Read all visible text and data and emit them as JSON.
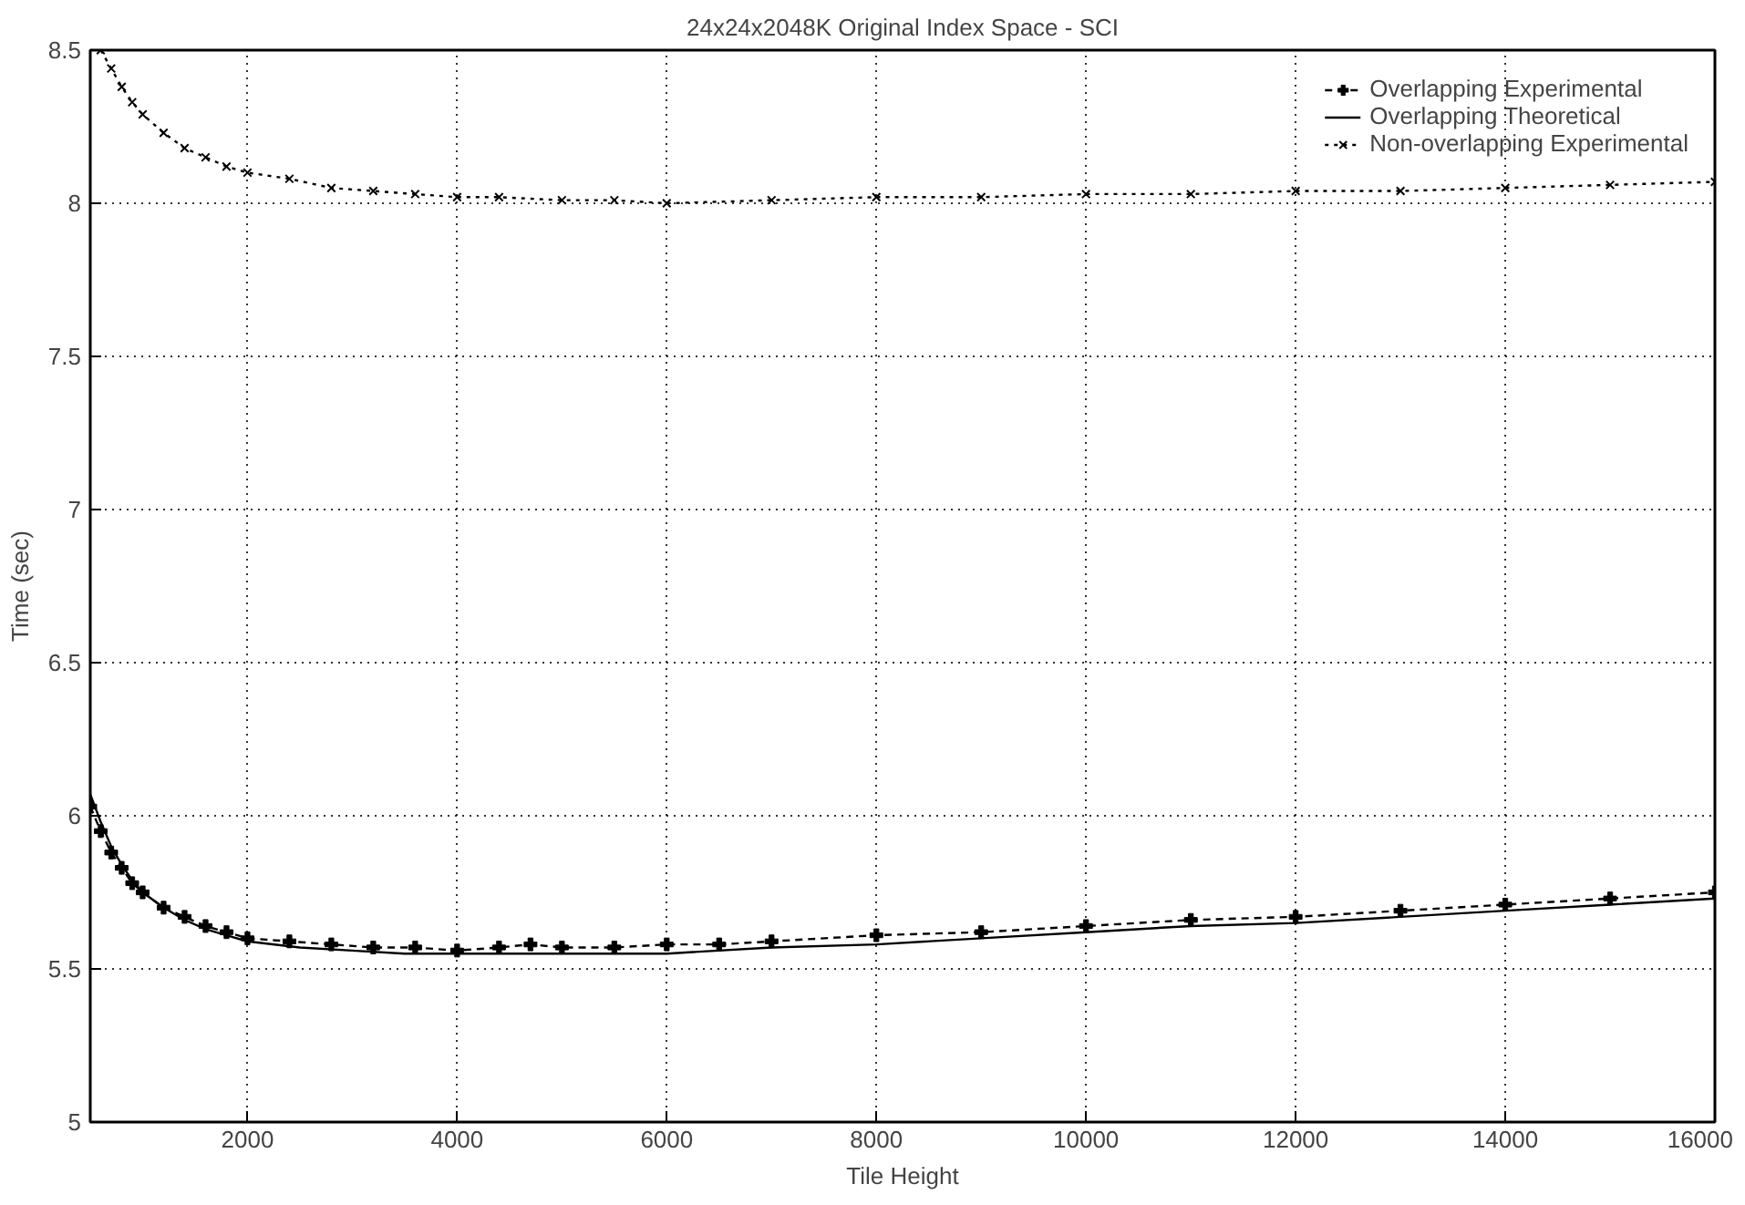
{
  "chart_data": {
    "type": "line",
    "title": "24x24x2048K Original Index Space - SCI",
    "xlabel": "Tile Height",
    "ylabel": "Time (sec)",
    "xlim": [
      500,
      16000
    ],
    "ylim": [
      5,
      8.5
    ],
    "xticks": [
      2000,
      4000,
      6000,
      8000,
      10000,
      12000,
      14000,
      16000
    ],
    "yticks": [
      5,
      5.5,
      6,
      6.5,
      7,
      7.5,
      8,
      8.5
    ],
    "grid": true,
    "legend": "top right",
    "series": [
      {
        "name": "Overlapping Experimental",
        "color": "#000000",
        "line_style": "dashed",
        "marker": "cross",
        "x": [
          500,
          600,
          700,
          800,
          900,
          1000,
          1200,
          1400,
          1600,
          1800,
          2000,
          2400,
          2800,
          3200,
          3600,
          4000,
          4400,
          4700,
          5000,
          5500,
          6000,
          6500,
          7000,
          8000,
          9000,
          10000,
          11000,
          12000,
          13000,
          14000,
          15000,
          16000
        ],
        "values": [
          6.03,
          5.95,
          5.88,
          5.83,
          5.78,
          5.75,
          5.7,
          5.67,
          5.64,
          5.62,
          5.6,
          5.59,
          5.58,
          5.57,
          5.57,
          5.56,
          5.57,
          5.58,
          5.57,
          5.57,
          5.58,
          5.58,
          5.59,
          5.61,
          5.62,
          5.64,
          5.66,
          5.67,
          5.69,
          5.71,
          5.73,
          5.75
        ]
      },
      {
        "name": "Overlapping Theoretical",
        "color": "#000000",
        "line_style": "solid",
        "marker": "none",
        "x": [
          500,
          600,
          700,
          800,
          900,
          1000,
          1200,
          1400,
          1600,
          1800,
          2000,
          2500,
          3000,
          3500,
          4000,
          5000,
          6000,
          7000,
          8000,
          9000,
          10000,
          11000,
          12000,
          13000,
          14000,
          15000,
          16000
        ],
        "values": [
          6.07,
          5.98,
          5.9,
          5.84,
          5.79,
          5.75,
          5.7,
          5.66,
          5.63,
          5.61,
          5.59,
          5.57,
          5.56,
          5.55,
          5.55,
          5.55,
          5.55,
          5.57,
          5.58,
          5.6,
          5.62,
          5.64,
          5.65,
          5.67,
          5.69,
          5.71,
          5.73
        ]
      },
      {
        "name": "Non-overlapping Experimental",
        "color": "#000000",
        "line_style": "dotted",
        "marker": "x",
        "x": [
          600,
          700,
          800,
          900,
          1000,
          1200,
          1400,
          1600,
          1800,
          2000,
          2400,
          2800,
          3200,
          3600,
          4000,
          4400,
          5000,
          5500,
          6000,
          7000,
          8000,
          9000,
          10000,
          11000,
          12000,
          13000,
          14000,
          15000,
          16000
        ],
        "values": [
          8.5,
          8.44,
          8.38,
          8.33,
          8.29,
          8.23,
          8.18,
          8.15,
          8.12,
          8.1,
          8.08,
          8.05,
          8.04,
          8.03,
          8.02,
          8.02,
          8.01,
          8.01,
          8.0,
          8.01,
          8.02,
          8.02,
          8.03,
          8.03,
          8.04,
          8.04,
          8.05,
          8.06,
          8.07
        ]
      }
    ]
  }
}
